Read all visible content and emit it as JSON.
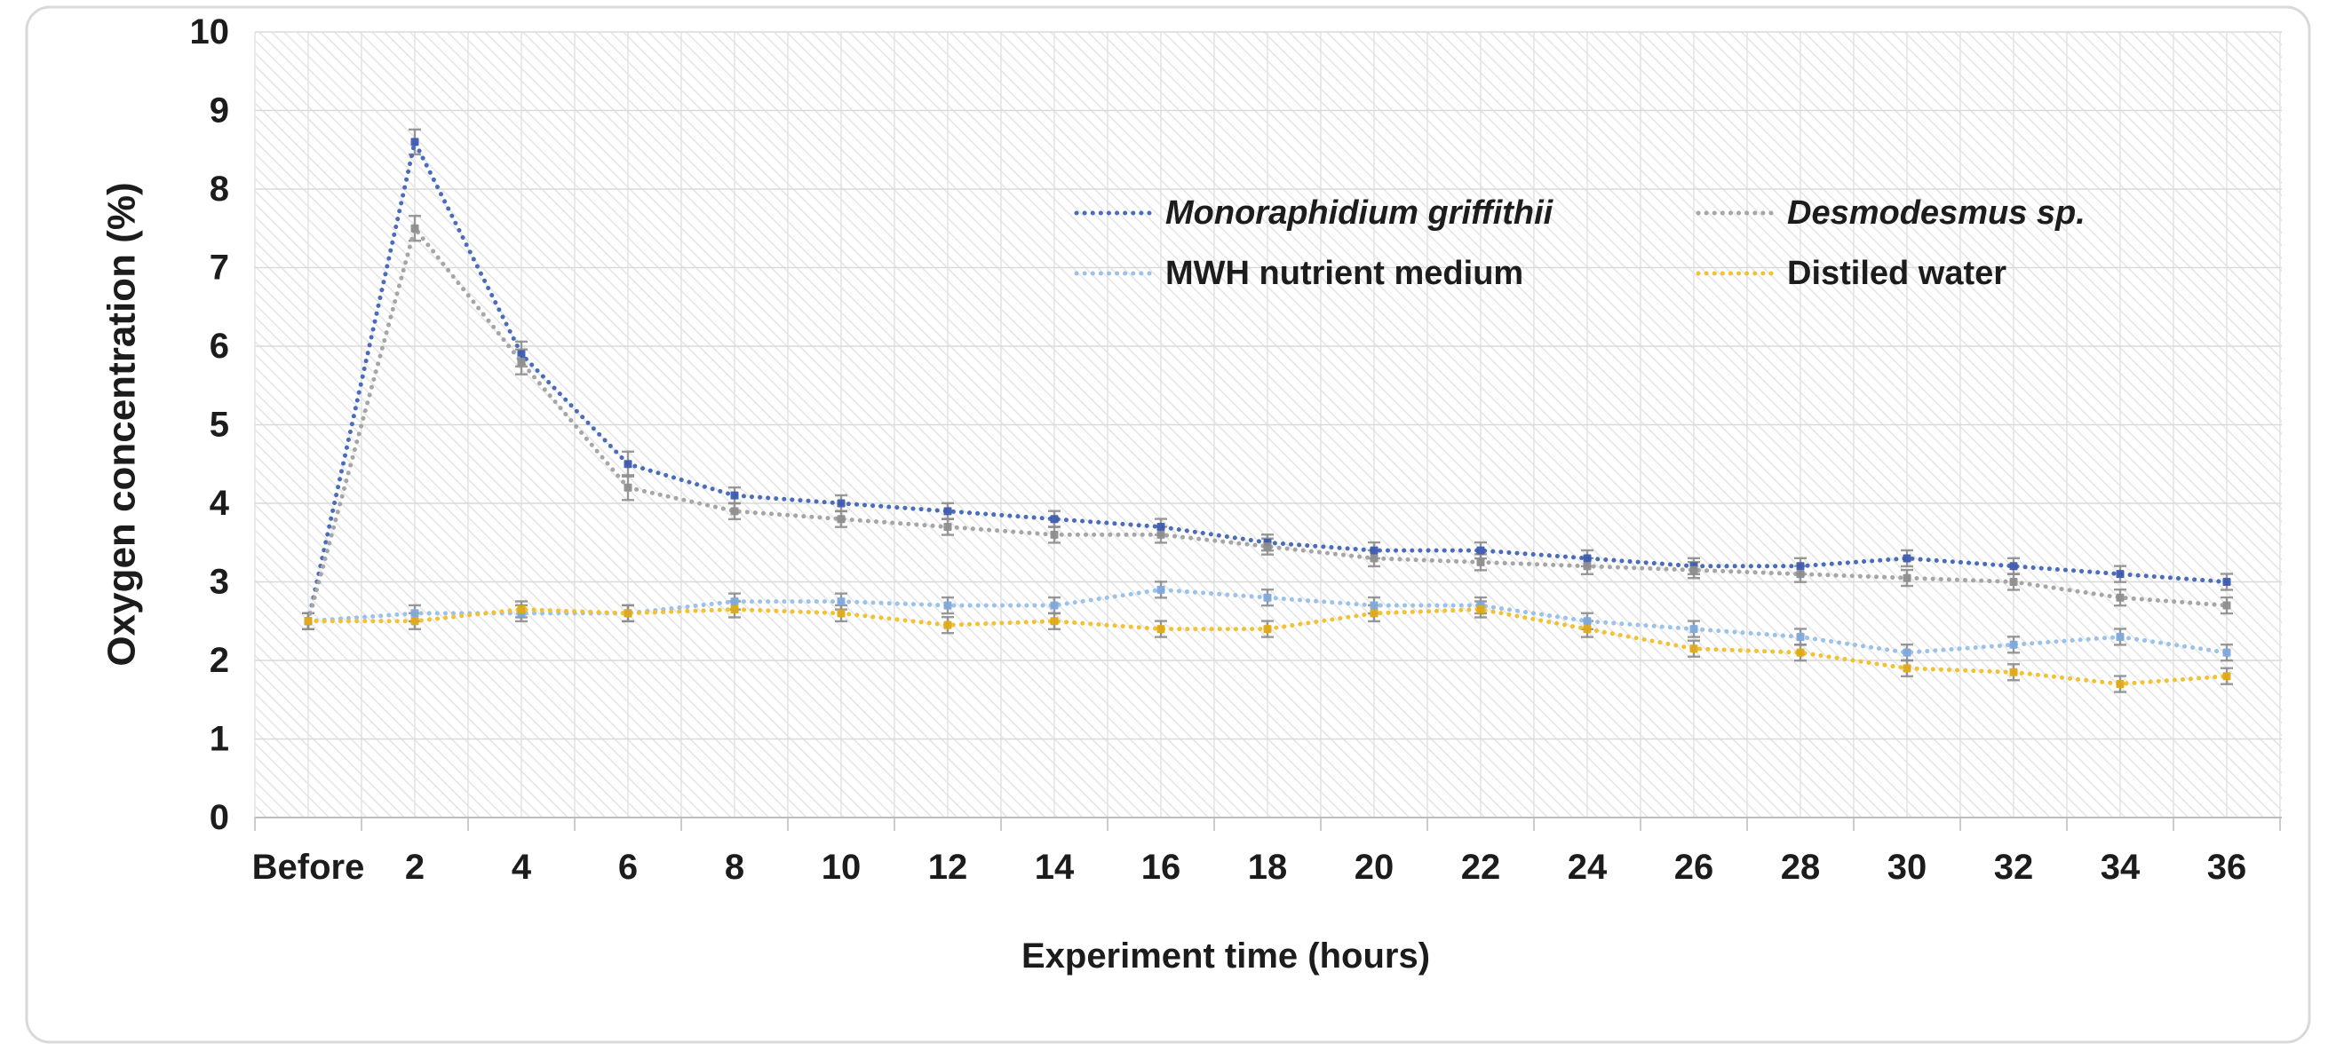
{
  "chart_data": {
    "type": "line",
    "title": "",
    "xlabel": "Experiment time (hours)",
    "ylabel": "Oxygen concentration (%)",
    "categories": [
      "Before",
      "2",
      "4",
      "6",
      "8",
      "10",
      "12",
      "14",
      "16",
      "18",
      "20",
      "22",
      "24",
      "26",
      "28",
      "30",
      "32",
      "34",
      "36"
    ],
    "ylim": [
      0,
      10
    ],
    "yticks": [
      0,
      1,
      2,
      3,
      4,
      5,
      6,
      7,
      8,
      9,
      10
    ],
    "grid": {
      "horizontal": "major",
      "vertical": "minor",
      "plot_fill": "diagonal-hatch"
    },
    "legend_position": "inside-top",
    "line_style": "dotted",
    "error_bars": true,
    "series": [
      {
        "name": "Monoraphidium griffithii",
        "italic": true,
        "color": "#4a6cba",
        "marker_color": "#3f5cae",
        "values": [
          2.5,
          8.6,
          5.9,
          4.5,
          4.1,
          4.0,
          3.9,
          3.8,
          3.7,
          3.5,
          3.4,
          3.4,
          3.3,
          3.2,
          3.2,
          3.3,
          3.2,
          3.1,
          3.0
        ]
      },
      {
        "name": "Desmodesmus sp.",
        "italic": true,
        "color": "#a6a6a6",
        "marker_color": "#8e8e8e",
        "values": [
          2.5,
          7.5,
          5.8,
          4.2,
          3.9,
          3.8,
          3.7,
          3.6,
          3.6,
          3.45,
          3.3,
          3.25,
          3.2,
          3.15,
          3.1,
          3.05,
          3.0,
          2.8,
          2.7
        ]
      },
      {
        "name": "MWH nutrient medium",
        "italic": false,
        "color": "#9cc2e8",
        "marker_color": "#7fa8d9",
        "values": [
          2.5,
          2.6,
          2.6,
          2.6,
          2.75,
          2.75,
          2.7,
          2.7,
          2.9,
          2.8,
          2.7,
          2.7,
          2.5,
          2.4,
          2.3,
          2.1,
          2.2,
          2.3,
          2.1
        ]
      },
      {
        "name": "Distiled water",
        "italic": false,
        "color": "#f2c233",
        "marker_color": "#dfa918",
        "values": [
          2.5,
          2.5,
          2.65,
          2.6,
          2.65,
          2.6,
          2.45,
          2.5,
          2.4,
          2.4,
          2.6,
          2.65,
          2.4,
          2.15,
          2.1,
          1.9,
          1.85,
          1.7,
          1.8
        ]
      }
    ],
    "colors": {
      "background": "#ffffff",
      "figure_border": "#d9d9d9",
      "hatch": "#e5e5e5",
      "major_gridline": "#dadada",
      "minor_gridline": "#e4e4e4",
      "axis_line": "#bdbdbd",
      "tick_mark": "#bfbfbf",
      "error_bar": "#8f8f8f",
      "text": "#1c1c1c"
    }
  }
}
